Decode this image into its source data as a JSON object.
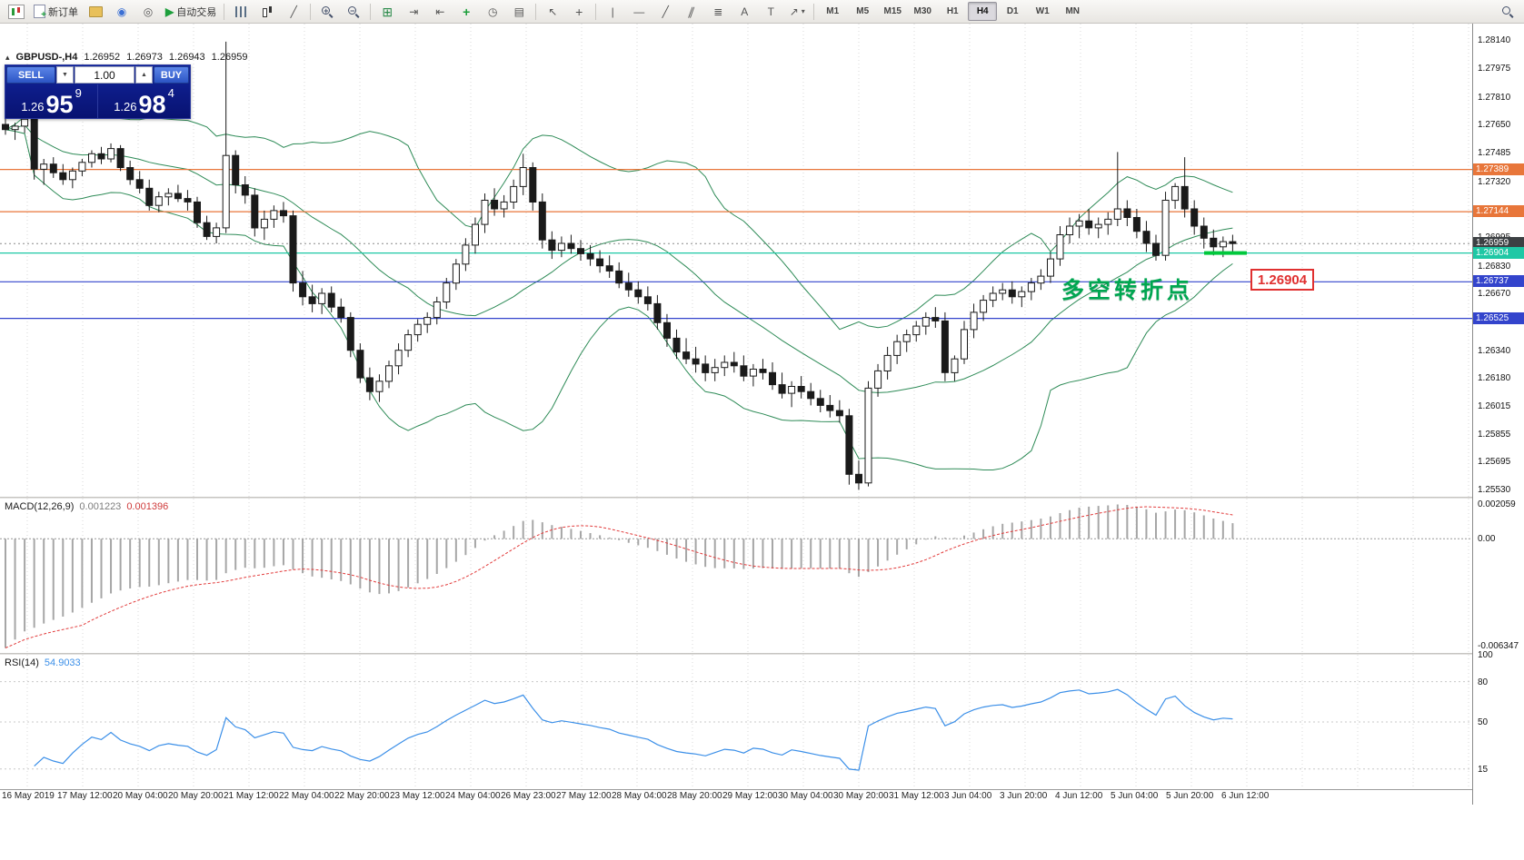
{
  "toolbar": {
    "new_order_label": "新订单",
    "auto_trading_label": "自动交易",
    "timeframes": [
      {
        "label": "M1",
        "active": false
      },
      {
        "label": "M5",
        "active": false
      },
      {
        "label": "M15",
        "active": false
      },
      {
        "label": "M30",
        "active": false
      },
      {
        "label": "H1",
        "active": false
      },
      {
        "label": "H4",
        "active": true
      },
      {
        "label": "D1",
        "active": false
      },
      {
        "label": "W1",
        "active": false
      },
      {
        "label": "MN",
        "active": false
      }
    ]
  },
  "icons": {
    "collapse_panel": "▴",
    "auto_play": "▶",
    "caret_down": "▼",
    "caret_up": "▲",
    "plus": "+",
    "minus": "−",
    "cursor": "↖",
    "crosshair": "+",
    "vline": "|",
    "hline": "—",
    "trendline": "╱",
    "channel": "∥",
    "fibonacci": "≣",
    "text_tool": "A",
    "label_tool": "T",
    "arrow_tool": "↗",
    "shapes_caret": "▾",
    "tile": "⊞",
    "templates": "▤",
    "clock": "◷",
    "scroll_end": "⇥",
    "shift_chart": "⇤",
    "profile": "◉",
    "community": "◎",
    "line_chart": "╱"
  },
  "symbol_header": {
    "symbol": "GBPUSD-,H4",
    "open": "1.26952",
    "high": "1.26973",
    "low": "1.26943",
    "close": "1.26959"
  },
  "trade_panel": {
    "sell_label": "SELL",
    "buy_label": "BUY",
    "volume": "1.00",
    "sell_price": {
      "head": "1.26",
      "big": "95",
      "sup": "9"
    },
    "buy_price": {
      "head": "1.26",
      "big": "98",
      "sup": "4"
    }
  },
  "annotation": {
    "text": "多空转折点",
    "color": "#00a651"
  },
  "price_callout": "1.26904",
  "price_axis": {
    "ticks": [
      "1.28140",
      "1.27975",
      "1.27810",
      "1.27650",
      "1.27485",
      "1.27320",
      "1.26995",
      "1.26830",
      "1.26670",
      "1.26340",
      "1.26180",
      "1.26015",
      "1.25855",
      "1.25695",
      "1.25530"
    ],
    "badges": [
      {
        "value": "1.27389",
        "color": "#e8763a"
      },
      {
        "value": "1.27144",
        "color": "#e8763a"
      },
      {
        "value": "1.26959",
        "color": "#3c4043"
      },
      {
        "value": "1.26904",
        "color": "#1ec8a5"
      },
      {
        "value": "1.26737",
        "color": "#3344cc"
      },
      {
        "value": "1.26525",
        "color": "#3344cc"
      }
    ]
  },
  "hlines": [
    {
      "price": 1.27389,
      "color": "#e8763a"
    },
    {
      "price": 1.27144,
      "color": "#e8763a"
    },
    {
      "price": 1.26904,
      "color": "#1ec8a5"
    },
    {
      "price": 1.26737,
      "color": "#3344cc"
    },
    {
      "price": 1.26525,
      "color": "#3344cc"
    }
  ],
  "highlight_segment": {
    "price": 1.26904,
    "color": "#00c83c"
  },
  "chart_data": {
    "type": "candlestick",
    "symbol": "GBPUSD",
    "timeframe": "H4",
    "price_range": [
      1.2549,
      1.28235
    ],
    "overlays": [
      {
        "name": "Bollinger Bands",
        "period": 20,
        "deviation": 2,
        "color": "#2e8b57"
      }
    ],
    "time_labels": [
      "16 May 2019",
      "17 May 12:00",
      "20 May 04:00",
      "20 May 20:00",
      "21 May 12:00",
      "22 May 04:00",
      "22 May 20:00",
      "23 May 12:00",
      "24 May 04:00",
      "26 May 23:00",
      "27 May 12:00",
      "28 May 04:00",
      "28 May 20:00",
      "29 May 12:00",
      "30 May 04:00",
      "30 May 20:00",
      "31 May 12:00",
      "3 Jun 04:00",
      "3 Jun 20:00",
      "4 Jun 12:00",
      "5 Jun 04:00",
      "5 Jun 20:00",
      "6 Jun 12:00"
    ],
    "candles": [
      [
        1.2765,
        1.2771,
        1.2759,
        1.2762
      ],
      [
        1.2762,
        1.2766,
        1.2756,
        1.2764
      ],
      [
        1.2764,
        1.277,
        1.276,
        1.2768
      ],
      [
        1.2768,
        1.2773,
        1.2733,
        1.2739
      ],
      [
        1.2739,
        1.2745,
        1.273,
        1.2742
      ],
      [
        1.2742,
        1.2746,
        1.2734,
        1.2737
      ],
      [
        1.2737,
        1.2742,
        1.273,
        1.2733
      ],
      [
        1.2733,
        1.274,
        1.2728,
        1.2738
      ],
      [
        1.2738,
        1.2745,
        1.2735,
        1.2743
      ],
      [
        1.2743,
        1.275,
        1.274,
        1.2748
      ],
      [
        1.2748,
        1.2752,
        1.2742,
        1.2745
      ],
      [
        1.2745,
        1.2754,
        1.2743,
        1.2751
      ],
      [
        1.2751,
        1.2753,
        1.2738,
        1.274
      ],
      [
        1.274,
        1.2744,
        1.273,
        1.2733
      ],
      [
        1.2733,
        1.2738,
        1.2725,
        1.2728
      ],
      [
        1.2728,
        1.2733,
        1.2715,
        1.2718
      ],
      [
        1.2718,
        1.2726,
        1.2714,
        1.2723
      ],
      [
        1.2723,
        1.2728,
        1.2718,
        1.2725
      ],
      [
        1.2725,
        1.273,
        1.272,
        1.2722
      ],
      [
        1.2722,
        1.2727,
        1.2715,
        1.272
      ],
      [
        1.272,
        1.2723,
        1.2705,
        1.2708
      ],
      [
        1.2708,
        1.2712,
        1.2698,
        1.27
      ],
      [
        1.27,
        1.2708,
        1.2696,
        1.2705
      ],
      [
        1.2705,
        1.2813,
        1.2702,
        1.2747
      ],
      [
        1.2747,
        1.275,
        1.2725,
        1.273
      ],
      [
        1.273,
        1.2735,
        1.2719,
        1.2724
      ],
      [
        1.2724,
        1.2728,
        1.27,
        1.2705
      ],
      [
        1.2705,
        1.2715,
        1.2698,
        1.271
      ],
      [
        1.271,
        1.2718,
        1.2705,
        1.2715
      ],
      [
        1.2715,
        1.272,
        1.2708,
        1.2712
      ],
      [
        1.2712,
        1.2715,
        1.2668,
        1.2673
      ],
      [
        1.2673,
        1.268,
        1.266,
        1.2665
      ],
      [
        1.2665,
        1.2672,
        1.2656,
        1.2661
      ],
      [
        1.2661,
        1.267,
        1.2655,
        1.2667
      ],
      [
        1.2667,
        1.2671,
        1.2656,
        1.2659
      ],
      [
        1.2659,
        1.2664,
        1.265,
        1.2653
      ],
      [
        1.2653,
        1.2656,
        1.263,
        1.2634
      ],
      [
        1.2634,
        1.2638,
        1.2615,
        1.2618
      ],
      [
        1.2618,
        1.2624,
        1.2605,
        1.261
      ],
      [
        1.261,
        1.262,
        1.2604,
        1.2616
      ],
      [
        1.2616,
        1.2628,
        1.2612,
        1.2625
      ],
      [
        1.2625,
        1.2638,
        1.262,
        1.2634
      ],
      [
        1.2634,
        1.2646,
        1.263,
        1.2643
      ],
      [
        1.2643,
        1.2652,
        1.2639,
        1.2649
      ],
      [
        1.2649,
        1.2656,
        1.2644,
        1.2653
      ],
      [
        1.2653,
        1.2665,
        1.2649,
        1.2662
      ],
      [
        1.2662,
        1.2676,
        1.2658,
        1.2673
      ],
      [
        1.2673,
        1.2687,
        1.2669,
        1.2684
      ],
      [
        1.2684,
        1.2699,
        1.268,
        1.2695
      ],
      [
        1.2695,
        1.2711,
        1.269,
        1.2707
      ],
      [
        1.2707,
        1.2725,
        1.2702,
        1.2721
      ],
      [
        1.2721,
        1.2728,
        1.2712,
        1.2716
      ],
      [
        1.2716,
        1.2724,
        1.2711,
        1.272
      ],
      [
        1.272,
        1.2733,
        1.2716,
        1.2729
      ],
      [
        1.2729,
        1.2748,
        1.2724,
        1.274
      ],
      [
        1.274,
        1.2743,
        1.2715,
        1.272
      ],
      [
        1.272,
        1.2725,
        1.2693,
        1.2698
      ],
      [
        1.2698,
        1.2703,
        1.2687,
        1.2692
      ],
      [
        1.2692,
        1.27,
        1.2688,
        1.2696
      ],
      [
        1.2696,
        1.2701,
        1.269,
        1.2693
      ],
      [
        1.2693,
        1.2698,
        1.2686,
        1.269
      ],
      [
        1.269,
        1.2695,
        1.2683,
        1.2687
      ],
      [
        1.2687,
        1.2692,
        1.2679,
        1.2683
      ],
      [
        1.2683,
        1.2689,
        1.2676,
        1.268
      ],
      [
        1.268,
        1.2685,
        1.267,
        1.2673
      ],
      [
        1.2673,
        1.2679,
        1.2665,
        1.2669
      ],
      [
        1.2669,
        1.2674,
        1.2661,
        1.2665
      ],
      [
        1.2665,
        1.2671,
        1.2657,
        1.2661
      ],
      [
        1.2661,
        1.2666,
        1.2646,
        1.265
      ],
      [
        1.265,
        1.2655,
        1.2636,
        1.2641
      ],
      [
        1.2641,
        1.2646,
        1.2629,
        1.2633
      ],
      [
        1.2633,
        1.2641,
        1.2626,
        1.2629
      ],
      [
        1.2629,
        1.2636,
        1.2621,
        1.2626
      ],
      [
        1.2626,
        1.2631,
        1.2616,
        1.2621
      ],
      [
        1.2621,
        1.2629,
        1.2616,
        1.2624
      ],
      [
        1.2624,
        1.2631,
        1.2619,
        1.2627
      ],
      [
        1.2627,
        1.2633,
        1.2621,
        1.2625
      ],
      [
        1.2625,
        1.2631,
        1.2616,
        1.2619
      ],
      [
        1.2619,
        1.2626,
        1.2613,
        1.2623
      ],
      [
        1.2623,
        1.2629,
        1.2617,
        1.2621
      ],
      [
        1.2621,
        1.2627,
        1.2611,
        1.2614
      ],
      [
        1.2614,
        1.2621,
        1.2606,
        1.2609
      ],
      [
        1.2609,
        1.2616,
        1.2601,
        1.2613
      ],
      [
        1.2613,
        1.2619,
        1.2606,
        1.261
      ],
      [
        1.261,
        1.2615,
        1.2602,
        1.2606
      ],
      [
        1.2606,
        1.2611,
        1.2598,
        1.2602
      ],
      [
        1.2602,
        1.2608,
        1.2595,
        1.2599
      ],
      [
        1.2599,
        1.2605,
        1.2592,
        1.2596
      ],
      [
        1.2596,
        1.26,
        1.2556,
        1.2562
      ],
      [
        1.2562,
        1.257,
        1.2553,
        1.2557
      ],
      [
        1.2557,
        1.2616,
        1.2555,
        1.2612
      ],
      [
        1.2612,
        1.2626,
        1.2607,
        1.2622
      ],
      [
        1.2622,
        1.2636,
        1.2617,
        1.2631
      ],
      [
        1.2631,
        1.2643,
        1.2626,
        1.2639
      ],
      [
        1.2639,
        1.2646,
        1.2633,
        1.2643
      ],
      [
        1.2643,
        1.2651,
        1.2639,
        1.2648
      ],
      [
        1.2648,
        1.2656,
        1.2643,
        1.2653
      ],
      [
        1.2653,
        1.2659,
        1.2647,
        1.2651
      ],
      [
        1.2651,
        1.2656,
        1.2616,
        1.2621
      ],
      [
        1.2621,
        1.2631,
        1.2616,
        1.2629
      ],
      [
        1.2629,
        1.2651,
        1.2626,
        1.2646
      ],
      [
        1.2646,
        1.2661,
        1.2641,
        1.2656
      ],
      [
        1.2656,
        1.2666,
        1.2651,
        1.2663
      ],
      [
        1.2663,
        1.2671,
        1.2659,
        1.2667
      ],
      [
        1.2667,
        1.2673,
        1.2663,
        1.2669
      ],
      [
        1.2669,
        1.2674,
        1.2661,
        1.2665
      ],
      [
        1.2665,
        1.2671,
        1.2659,
        1.2668
      ],
      [
        1.2668,
        1.2676,
        1.2663,
        1.2673
      ],
      [
        1.2673,
        1.2681,
        1.2669,
        1.2677
      ],
      [
        1.2677,
        1.2691,
        1.2673,
        1.2687
      ],
      [
        1.2687,
        1.2706,
        1.2683,
        1.2701
      ],
      [
        1.2701,
        1.2711,
        1.2696,
        1.2706
      ],
      [
        1.2706,
        1.2713,
        1.2699,
        1.2709
      ],
      [
        1.2709,
        1.2716,
        1.2701,
        1.2705
      ],
      [
        1.2705,
        1.2711,
        1.2699,
        1.2707
      ],
      [
        1.2707,
        1.2714,
        1.2701,
        1.271
      ],
      [
        1.271,
        1.2749,
        1.2706,
        1.2716
      ],
      [
        1.2716,
        1.2721,
        1.2706,
        1.2711
      ],
      [
        1.2711,
        1.2716,
        1.2699,
        1.2703
      ],
      [
        1.2703,
        1.2709,
        1.2691,
        1.2696
      ],
      [
        1.2696,
        1.2701,
        1.2686,
        1.2689
      ],
      [
        1.2689,
        1.2726,
        1.2686,
        1.2721
      ],
      [
        1.2721,
        1.2731,
        1.2716,
        1.2729
      ],
      [
        1.2729,
        1.2746,
        1.2711,
        1.2716
      ],
      [
        1.2716,
        1.2721,
        1.2701,
        1.2706
      ],
      [
        1.2706,
        1.2711,
        1.2693,
        1.2699
      ],
      [
        1.2699,
        1.2704,
        1.2689,
        1.2694
      ],
      [
        1.2694,
        1.27,
        1.2688,
        1.2697
      ],
      [
        1.2697,
        1.2701,
        1.269,
        1.26959
      ]
    ]
  },
  "macd": {
    "name": "MACD(12,26,9)",
    "main_value": "0.001223",
    "signal_value": "0.001396",
    "axis": [
      "0.002059",
      "0.00",
      "-0.006347"
    ],
    "range": [
      -0.0068,
      0.0024
    ],
    "histogram_color": "#a6a6a6",
    "signal_color": "#e23b3b"
  },
  "rsi": {
    "name": "RSI(14)",
    "value": "54.9033",
    "period": 14,
    "axis": [
      "100",
      "80",
      "50",
      "15"
    ],
    "levels": [
      80,
      50,
      15
    ],
    "range": [
      0,
      100
    ],
    "color": "#3b8fe8"
  }
}
